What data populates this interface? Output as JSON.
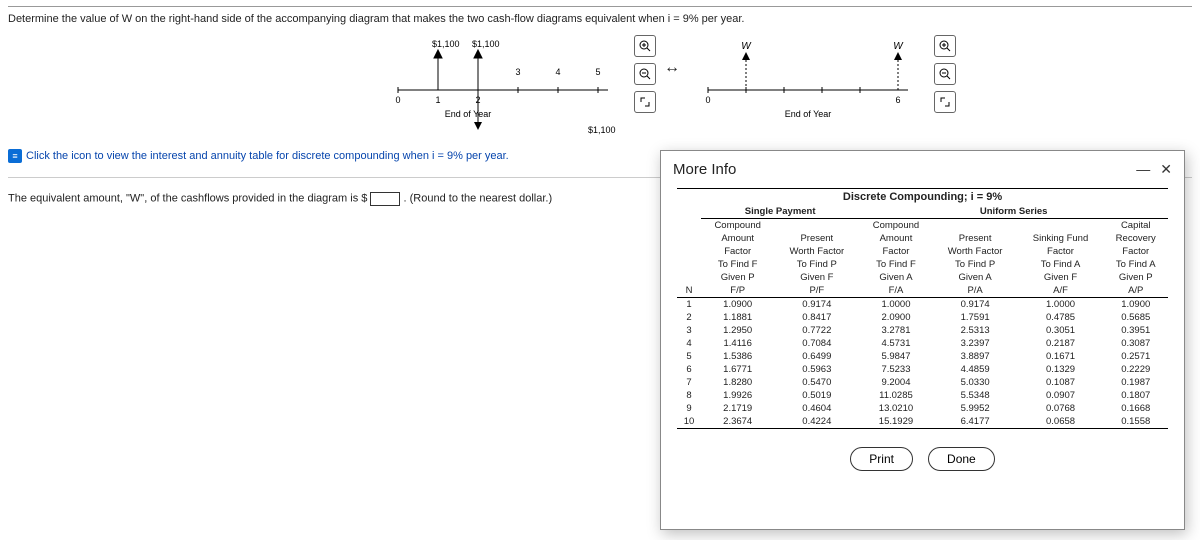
{
  "question": {
    "prompt": "Determine the value of W on the right-hand side of the accompanying diagram that makes the two cash-flow diagrams equivalent when i = 9% per year.",
    "link_text": "Click the icon to view the interest and annuity table for discrete compounding when i = 9% per year.",
    "answer_lead": "The equivalent amount, \"W\", of the cashflows provided in the diagram is $",
    "answer_hint": ". (Round to the nearest dollar.)"
  },
  "diagram_left": {
    "up_labels": [
      "$1,100",
      "$1,100"
    ],
    "ticks": [
      "0",
      "1",
      "2",
      "3",
      "4",
      "5"
    ],
    "down_value": "$1,100",
    "axis_label": "End of Year"
  },
  "diagram_right": {
    "up_left": "W",
    "up_right": "W",
    "ticks": [
      "0",
      "6"
    ],
    "axis_label": "End of Year"
  },
  "icons": {
    "zoom_in": "⦿",
    "zoom_out": "⦾",
    "expand": "⤢"
  },
  "modal": {
    "title": "More Info",
    "minimize": "—",
    "close": "✕",
    "table_caption": "Discrete Compounding; i = 9%",
    "group1": "Single Payment",
    "group2": "Uniform Series",
    "col_headers": {
      "N": "N",
      "c1a": "Compound",
      "c1b": "Amount",
      "c1c": "Factor",
      "c1d": "To Find F",
      "c1e": "Given P",
      "c1f": "F/P",
      "c2a": "Present",
      "c2b": "Worth Factor",
      "c2d": "To Find P",
      "c2e": "Given F",
      "c2f": "P/F",
      "c3a": "Compound",
      "c3b": "Amount",
      "c3c": "Factor",
      "c3d": "To Find F",
      "c3e": "Given A",
      "c3f": "F/A",
      "c4a": "Present",
      "c4b": "Worth Factor",
      "c4d": "To Find P",
      "c4e": "Given A",
      "c4f": "P/A",
      "c5a": "Sinking Fund",
      "c5b": "Factor",
      "c5d": "To Find A",
      "c5e": "Given F",
      "c5f": "A/F",
      "c6a": "Capital",
      "c6b": "Recovery",
      "c6c": "Factor",
      "c6d": "To Find A",
      "c6e": "Given P",
      "c6f": "A/P"
    },
    "rows": [
      [
        "1",
        "1.0900",
        "0.9174",
        "1.0000",
        "0.9174",
        "1.0000",
        "1.0900"
      ],
      [
        "2",
        "1.1881",
        "0.8417",
        "2.0900",
        "1.7591",
        "0.4785",
        "0.5685"
      ],
      [
        "3",
        "1.2950",
        "0.7722",
        "3.2781",
        "2.5313",
        "0.3051",
        "0.3951"
      ],
      [
        "4",
        "1.4116",
        "0.7084",
        "4.5731",
        "3.2397",
        "0.2187",
        "0.3087"
      ],
      [
        "5",
        "1.5386",
        "0.6499",
        "5.9847",
        "3.8897",
        "0.1671",
        "0.2571"
      ],
      [
        "6",
        "1.6771",
        "0.5963",
        "7.5233",
        "4.4859",
        "0.1329",
        "0.2229"
      ],
      [
        "7",
        "1.8280",
        "0.5470",
        "9.2004",
        "5.0330",
        "0.1087",
        "0.1987"
      ],
      [
        "8",
        "1.9926",
        "0.5019",
        "11.0285",
        "5.5348",
        "0.0907",
        "0.1807"
      ],
      [
        "9",
        "2.1719",
        "0.4604",
        "13.0210",
        "5.9952",
        "0.0768",
        "0.1668"
      ],
      [
        "10",
        "2.3674",
        "0.4224",
        "15.1929",
        "6.4177",
        "0.0658",
        "0.1558"
      ]
    ],
    "print": "Print",
    "done": "Done"
  },
  "style": {
    "link_color": "#0645ad",
    "border_color": "#888"
  }
}
